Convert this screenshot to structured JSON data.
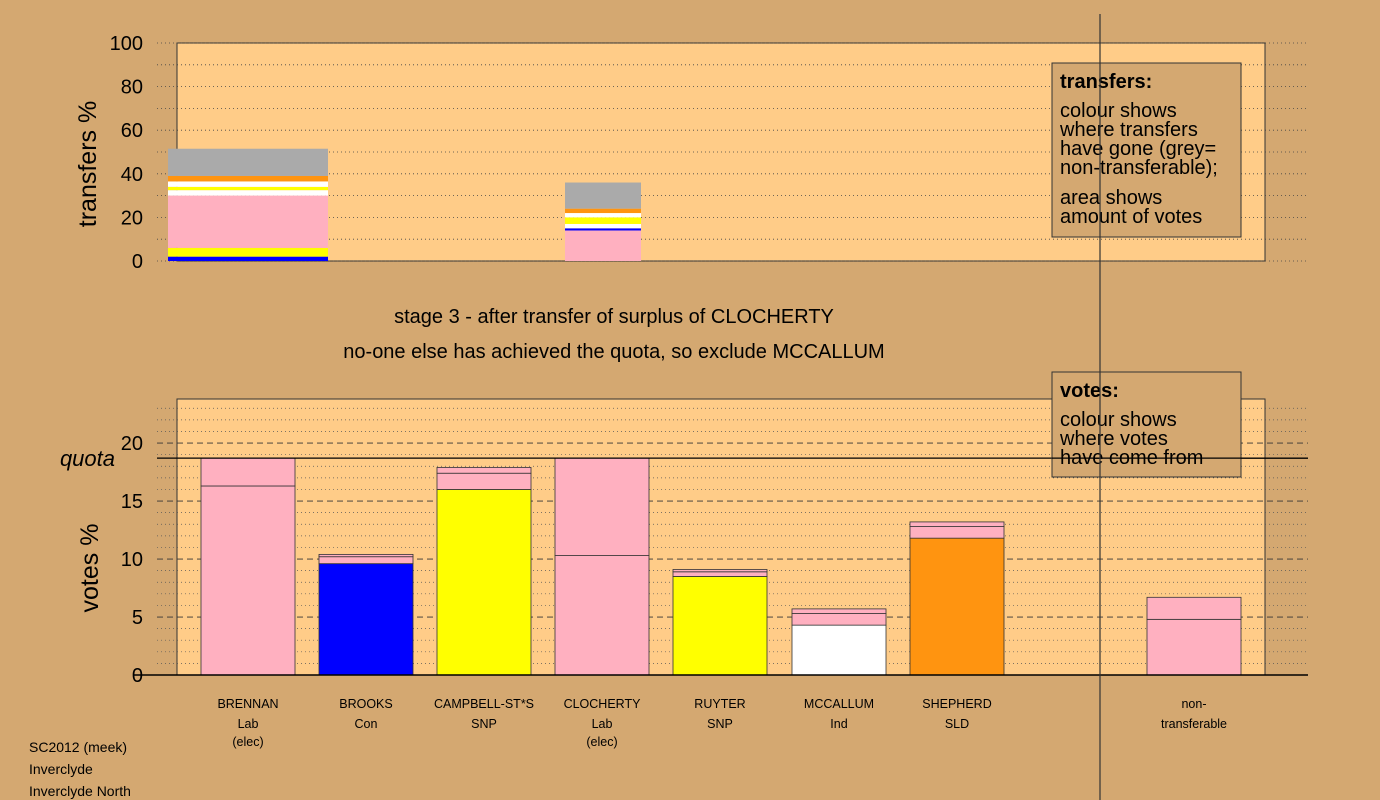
{
  "captions": {
    "stage": "stage 3 - after transfer of surplus of CLOCHERTY",
    "action": "no-one else has achieved the quota, so exclude MCCALLUM"
  },
  "footer": [
    "SC2012 (meek)",
    "Inverclyde",
    "Inverclyde North"
  ],
  "colors": {
    "background": "#d4a871",
    "plot_area": "#ffcc88",
    "Lab": "#ffb0c0",
    "Con": "#0000ff",
    "SNP": "#ffff00",
    "Ind": "#ffffff",
    "SLD": "#ff9410",
    "non_transferable": "#aaaaaa"
  },
  "legend_transfers": {
    "title": "transfers:",
    "lines": [
      "colour shows",
      "where transfers",
      "have gone (grey=",
      "non-transferable);"
    ],
    "lines2": [
      "area shows",
      "amount of votes"
    ]
  },
  "legend_votes": {
    "title": "votes:",
    "lines": [
      "colour shows",
      "where votes",
      "have come from"
    ]
  },
  "chart_data": [
    {
      "type": "bar",
      "stacked": true,
      "ylabel": "transfers %",
      "ylim": [
        0,
        100
      ],
      "yticks": [
        0,
        20,
        40,
        60,
        80,
        100
      ],
      "grid": "dotted horizontal",
      "transfers": [
        {
          "from": "BRENNAN",
          "segments": [
            {
              "party": "Con",
              "value": 2
            },
            {
              "party": "SNP",
              "value": 4
            },
            {
              "party": "Lab",
              "value": 24
            },
            {
              "party": "Ind",
              "value": 2.5
            },
            {
              "party": "SNP",
              "value": 1.5
            },
            {
              "party": "Ind",
              "value": 2.5
            },
            {
              "party": "SLD",
              "value": 2.5
            },
            {
              "party": "non_transferable",
              "value": 12.5
            }
          ]
        },
        {
          "from": "CLOCHERTY",
          "segments": [
            {
              "party": "Lab",
              "value": 14
            },
            {
              "party": "Con",
              "value": 1
            },
            {
              "party": "Ind",
              "value": 2
            },
            {
              "party": "SNP",
              "value": 3
            },
            {
              "party": "Ind",
              "value": 2
            },
            {
              "party": "SLD",
              "value": 2
            },
            {
              "party": "non_transferable",
              "value": 12
            }
          ]
        }
      ]
    },
    {
      "type": "bar",
      "stacked": true,
      "ylabel": "votes %",
      "ylim": [
        0,
        23.8
      ],
      "yticks": [
        0,
        5,
        10,
        15,
        20
      ],
      "quota": 18.7,
      "quota_label": "quota",
      "grid": "dashed major, dotted minor",
      "candidates": [
        {
          "name": "BRENNAN",
          "party": "Lab",
          "status": "(elec)",
          "segments": [
            {
              "party": "Lab",
              "value": 16.3
            },
            {
              "party": "Lab",
              "value": 2.4
            }
          ]
        },
        {
          "name": "BROOKS",
          "party": "Con",
          "status": "",
          "segments": [
            {
              "party": "Con",
              "value": 9.6
            },
            {
              "party": "Lab",
              "value": 0.6
            },
            {
              "party": "Lab",
              "value": 0.2
            }
          ]
        },
        {
          "name": "CAMPBELL-ST*S",
          "party": "SNP",
          "status": "",
          "segments": [
            {
              "party": "SNP",
              "value": 16.0
            },
            {
              "party": "Lab",
              "value": 1.4
            },
            {
              "party": "Lab",
              "value": 0.5
            }
          ]
        },
        {
          "name": "CLOCHERTY",
          "party": "Lab",
          "status": "(elec)",
          "segments": [
            {
              "party": "Lab",
              "value": 10.3
            },
            {
              "party": "Lab",
              "value": 8.4
            }
          ]
        },
        {
          "name": "RUYTER",
          "party": "SNP",
          "status": "",
          "segments": [
            {
              "party": "SNP",
              "value": 8.5
            },
            {
              "party": "Lab",
              "value": 0.4
            },
            {
              "party": "Lab",
              "value": 0.2
            }
          ]
        },
        {
          "name": "MCCALLUM",
          "party": "Ind",
          "status": "",
          "segments": [
            {
              "party": "Ind",
              "value": 4.3
            },
            {
              "party": "Lab",
              "value": 1.0
            },
            {
              "party": "Lab",
              "value": 0.4
            }
          ]
        },
        {
          "name": "SHEPHERD",
          "party": "SLD",
          "status": "",
          "segments": [
            {
              "party": "SLD",
              "value": 11.8
            },
            {
              "party": "Lab",
              "value": 1.0
            },
            {
              "party": "Lab",
              "value": 0.4
            }
          ]
        }
      ],
      "non_transferable": {
        "name": "non-",
        "name2": "transferable",
        "segments": [
          {
            "party": "Lab",
            "value": 4.8
          },
          {
            "party": "Lab",
            "value": 1.9
          }
        ]
      }
    }
  ]
}
